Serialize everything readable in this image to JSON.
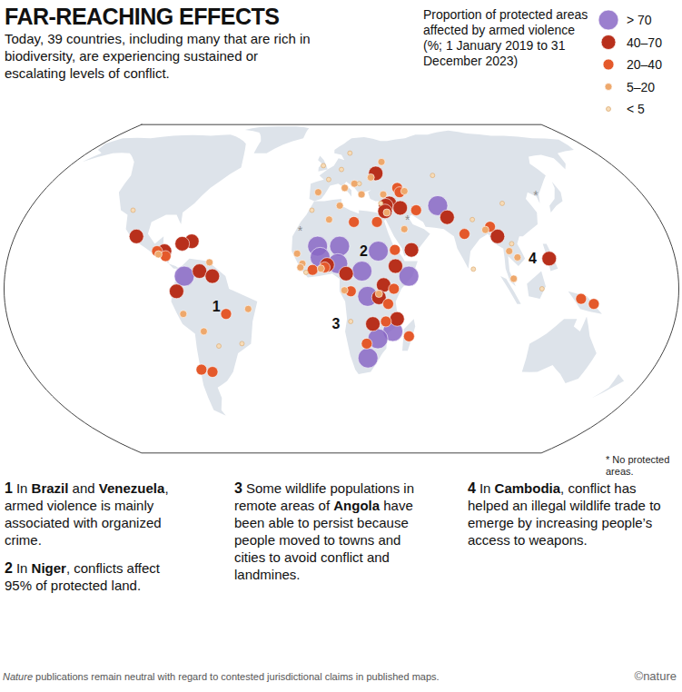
{
  "chart_data": {
    "type": "map",
    "title": "FAR-REACHING EFFECTS",
    "subtitle": "Today, 39 countries, including many that are rich in biodiversity, are experiencing sustained or escalating levels of conflict.",
    "legend_title": "Proportion of protected areas affected by armed violence (%; 1 January 2019 to 31 December 2023)",
    "legend": "top-right",
    "series": [
      {
        "name": "> 70",
        "color": "#8a68c6",
        "points": [
          [
            -74,
            5
          ],
          [
            -3,
            17
          ],
          [
            9,
            17
          ],
          [
            -1.5,
            12.5
          ],
          [
            8,
            10
          ],
          [
            30,
            15
          ],
          [
            46,
            5
          ],
          [
            21,
            7
          ],
          [
            24,
            -3
          ],
          [
            38,
            -17
          ],
          [
            30,
            -20
          ],
          [
            25,
            -28
          ],
          [
            66,
            34
          ]
        ]
      },
      {
        "name": "40–70",
        "color": "#b8301c",
        "points": [
          [
            -103,
            21
          ],
          [
            -72,
            19
          ],
          [
            -77,
            18
          ],
          [
            -86,
            15
          ],
          [
            -78,
            -1
          ],
          [
            -66,
            7
          ],
          [
            -59,
            5
          ],
          [
            32,
            49
          ],
          [
            38,
            35
          ],
          [
            35.8,
            34
          ],
          [
            35,
            31.5
          ],
          [
            44,
            33
          ],
          [
            48,
            15.5
          ],
          [
            70,
            29
          ],
          [
            96,
            21
          ],
          [
            122,
            12
          ],
          [
            2.3,
            9.5
          ],
          [
            12.5,
            6
          ],
          [
            39,
            9
          ],
          [
            32.5,
            1.5
          ],
          [
            30,
            -3.4
          ],
          [
            27,
            -14
          ],
          [
            40,
            -12
          ]
        ]
      },
      {
        "name": "20–40",
        "color": "#e4592b",
        "points": [
          [
            -90,
            15
          ],
          [
            -85,
            13
          ],
          [
            -52,
            -10
          ],
          [
            -71,
            -33
          ],
          [
            -65,
            -34
          ],
          [
            44,
            42
          ],
          [
            45,
            40
          ],
          [
            30,
            27
          ],
          [
            53,
            32
          ],
          [
            78,
            22
          ],
          [
            93,
            25
          ],
          [
            -5.5,
            7.5
          ],
          [
            1,
            8.5
          ],
          [
            39,
            15.5
          ],
          [
            38,
            0
          ],
          [
            15,
            -1
          ],
          [
            35,
            -6
          ],
          [
            34,
            -13
          ],
          [
            47,
            -19
          ],
          [
            24,
            -22
          ],
          [
            145,
            -6
          ],
          [
            138,
            -4
          ],
          [
            17,
            27
          ]
        ]
      },
      {
        "name": "5–20",
        "color": "#eea86c",
        "points": [
          [
            -89,
            13.7
          ],
          [
            -61,
            10.5
          ],
          [
            -75,
            -10
          ],
          [
            -65,
            -17
          ],
          [
            -40,
            -8
          ],
          [
            -4,
            40
          ],
          [
            12,
            42
          ],
          [
            18,
            44
          ],
          [
            22,
            39
          ],
          [
            37,
            55
          ],
          [
            28.5,
            47
          ],
          [
            48,
            40.5
          ],
          [
            35,
            39
          ],
          [
            36,
            31
          ],
          [
            45,
            24
          ],
          [
            90,
            23.7
          ],
          [
            101,
            15
          ],
          [
            105,
            12.5
          ],
          [
            102,
            4
          ],
          [
            -14,
            14
          ],
          [
            -11,
            10
          ],
          [
            -12,
            8.5
          ],
          [
            -1,
            8
          ],
          [
            9,
            34
          ],
          [
            11.6,
            -0.6
          ],
          [
            30,
            -2
          ],
          [
            3,
            28
          ]
        ]
      },
      {
        "name": "< 5",
        "color": "#f7dcb8",
        "points": [
          [
            -110,
            32
          ],
          [
            -58,
            -23
          ],
          [
            -45,
            -22
          ],
          [
            2,
            46
          ],
          [
            -2,
            53
          ],
          [
            10,
            51
          ],
          [
            21,
            44
          ],
          [
            16,
            60
          ],
          [
            68,
            48
          ],
          [
            104,
            35
          ],
          [
            84,
            28
          ],
          [
            80.7,
            7.8
          ],
          [
            103,
            18
          ],
          [
            117,
            0
          ],
          [
            -7,
            32
          ],
          [
            -9,
            6.5
          ],
          [
            15,
            -13
          ],
          [
            33,
            35
          ]
        ]
      }
    ],
    "no_protected_areas": {
      "symbol": "*",
      "label": "No protected areas.",
      "points": [
        [
          -13,
          24.5
        ],
        [
          47.5,
          29.3
        ],
        [
          127,
          40
        ]
      ]
    },
    "annotations": [
      {
        "number": "1",
        "lon": -57,
        "lat": -7,
        "text": "In Brazil and Venezuela, armed violence is mainly associated with organized crime.",
        "bold": [
          "Brazil",
          "Venezuela"
        ]
      },
      {
        "number": "2",
        "lon": 22,
        "lat": 15,
        "text": "In Niger, conflicts affect 95% of protected land.",
        "bold": [
          "Niger"
        ]
      },
      {
        "number": "3",
        "lon": 7,
        "lat": -14,
        "text": "Some wildlife populations in remote areas of Angola have been able to persist because people moved to towns and cities to avoid conflict and landmines.",
        "bold": [
          "Angola"
        ]
      },
      {
        "number": "4",
        "lon": 113,
        "lat": 12,
        "text": "In Cambodia, conflict has helped an illegal wildlife trade to emerge by increasing people’s access to weapons.",
        "bold": [
          "Cambodia"
        ]
      }
    ],
    "footnote": {
      "text": "Nature publications remain neutral with regard to contested jurisdictional claims in published maps.",
      "italic": [
        "Nature"
      ]
    },
    "credit": "©nature"
  }
}
